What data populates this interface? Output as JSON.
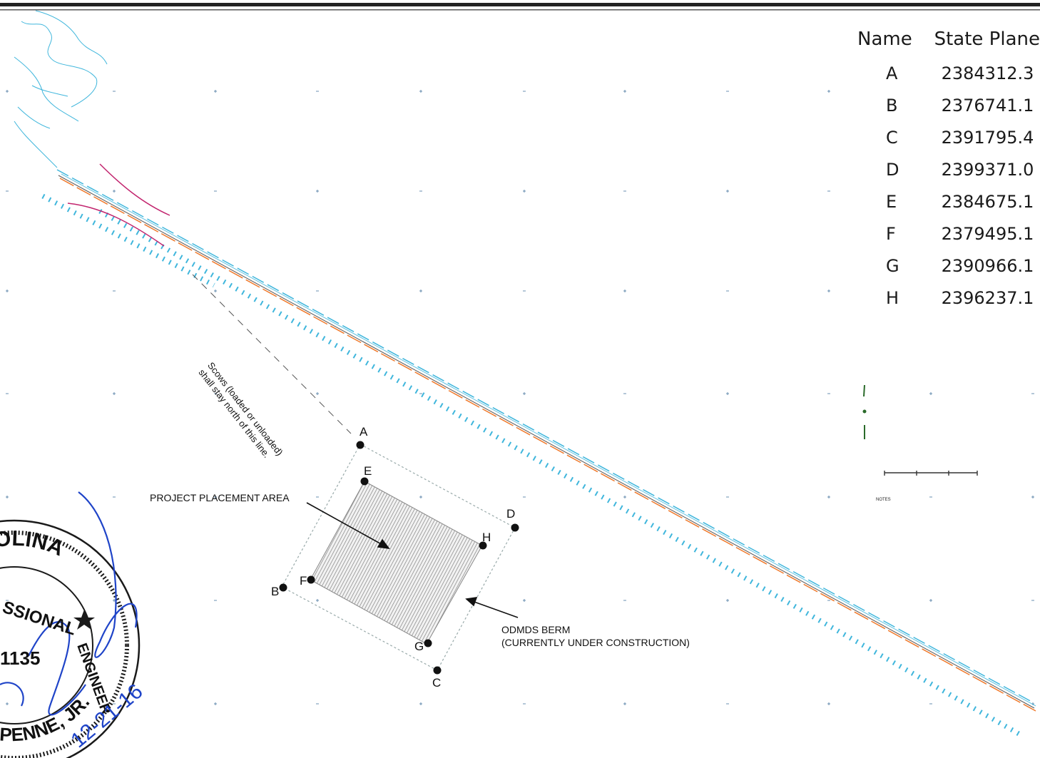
{
  "coordinate_table": {
    "headers": [
      "Name",
      "State Plane"
    ],
    "rows": [
      {
        "name": "A",
        "value": "2384312.3"
      },
      {
        "name": "B",
        "value": "2376741.1"
      },
      {
        "name": "C",
        "value": "2391795.4"
      },
      {
        "name": "D",
        "value": "2399371.0"
      },
      {
        "name": "E",
        "value": "2384675.1"
      },
      {
        "name": "F",
        "value": "2379495.1"
      },
      {
        "name": "G",
        "value": "2390966.1"
      },
      {
        "name": "H",
        "value": "2396237.1"
      }
    ]
  },
  "annotations": {
    "scow_line_label_1": "Scows (loaded or unloaded)",
    "scow_line_label_2": "shall stay north of this line.",
    "placement_area": "PROJECT PLACEMENT AREA",
    "berm_line_1": "ODMDS BERM",
    "berm_line_2": "(CURRENTLY UNDER CONSTRUCTION)"
  },
  "point_labels": [
    "A",
    "B",
    "C",
    "D",
    "E",
    "F",
    "G",
    "H"
  ],
  "seal": {
    "text_top": "AROLINA",
    "text_left": "SSIONAL",
    "text_right": "ENGINEER",
    "text_bottom": "GAPENNE, JR.",
    "number": "1135",
    "date": "12-21-16"
  },
  "legend": {
    "notes_title": "NOTES"
  },
  "colors": {
    "channel_cyan": "#3fb6dc",
    "channel_orange": "#f07a2c",
    "channel_magenta": "#c2246e",
    "signature_blue": "#1f44c8",
    "grid_mark": "#6a8fb0"
  }
}
